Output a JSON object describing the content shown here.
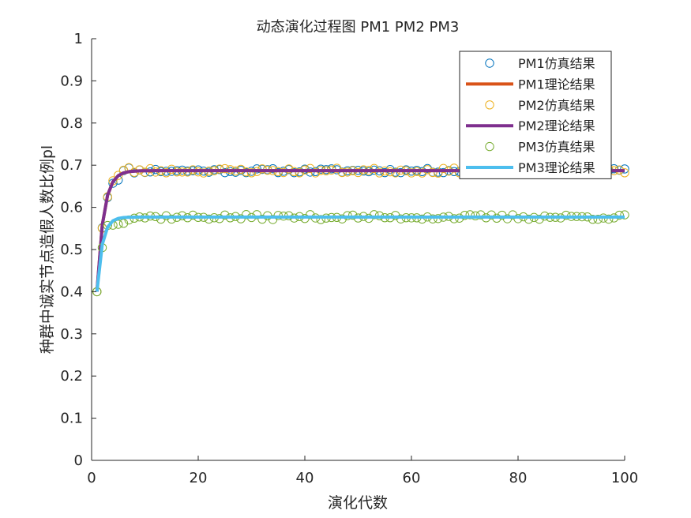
{
  "chart_data": {
    "type": "line",
    "title": "动态演化过程图 PM1 PM2 PM3",
    "xlabel": "演化代数",
    "ylabel": "种群中诚实节点造假人数比例pl",
    "xlim": [
      0,
      100
    ],
    "ylim": [
      0,
      1
    ],
    "xticks": [
      0,
      20,
      40,
      60,
      80,
      100
    ],
    "yticks": [
      0,
      0.1,
      0.2,
      0.3,
      0.4,
      0.5,
      0.6,
      0.7,
      0.8,
      0.9,
      1
    ],
    "grid": false,
    "legend_position": "top-right",
    "series": [
      {
        "name": "PM1仿真结果",
        "kind": "scatter",
        "color": "#0072BD",
        "model": {
          "start": 0.4,
          "plateau": 0.687,
          "rate": 0.8,
          "noise": 0.005,
          "seed": 11
        }
      },
      {
        "name": "PM1理论结果",
        "kind": "line",
        "color": "#D95319",
        "model": {
          "start": 0.4,
          "plateau": 0.687,
          "rate": 0.8
        }
      },
      {
        "name": "PM2仿真结果",
        "kind": "scatter",
        "color": "#EDB120",
        "model": {
          "start": 0.4,
          "plateau": 0.687,
          "rate": 0.8,
          "noise": 0.006,
          "seed": 23
        }
      },
      {
        "name": "PM2理论结果",
        "kind": "line",
        "color": "#7E2F8E",
        "model": {
          "start": 0.4,
          "plateau": 0.687,
          "rate": 0.8
        }
      },
      {
        "name": "PM3仿真结果",
        "kind": "scatter",
        "color": "#77AC30",
        "model": {
          "start": 0.4,
          "plateau": 0.577,
          "rate": 1.0,
          "noise": 0.006,
          "seed": 37
        }
      },
      {
        "name": "PM3理论结果",
        "kind": "line",
        "color": "#4DBEEE",
        "model": {
          "start": 0.4,
          "plateau": 0.577,
          "rate": 1.0
        }
      }
    ],
    "x_range": [
      1,
      100
    ]
  }
}
